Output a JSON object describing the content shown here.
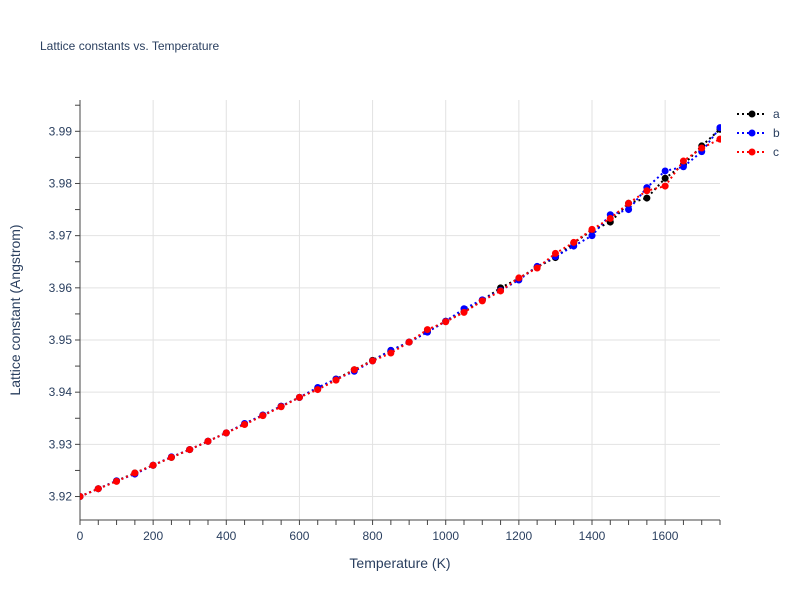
{
  "chart_data": {
    "type": "line",
    "title": "Lattice constants vs. Temperature",
    "xlabel": "Temperature (K)",
    "ylabel": "Lattice constant (Angstrom)",
    "xlim": [
      0,
      1750
    ],
    "ylim": [
      3.9155,
      3.996
    ],
    "x_ticks": [
      0,
      200,
      400,
      600,
      800,
      1000,
      1200,
      1400,
      1600
    ],
    "y_ticks": [
      3.92,
      3.93,
      3.94,
      3.95,
      3.96,
      3.97,
      3.98,
      3.99
    ],
    "grid": true,
    "legend_position": "top-right",
    "line_style": "dotted",
    "x": [
      0,
      50,
      100,
      150,
      200,
      250,
      300,
      350,
      400,
      450,
      500,
      550,
      600,
      650,
      700,
      750,
      800,
      850,
      900,
      950,
      1000,
      1050,
      1100,
      1150,
      1200,
      1250,
      1300,
      1350,
      1400,
      1450,
      1500,
      1550,
      1600,
      1650,
      1700,
      1750
    ],
    "series": [
      {
        "name": "a",
        "color": "#000000",
        "values": [
          3.92,
          3.9215,
          3.923,
          3.9245,
          3.926,
          3.9275,
          3.929,
          3.9306,
          3.9322,
          3.9339,
          3.9356,
          3.9373,
          3.939,
          3.9407,
          3.9425,
          3.9443,
          3.9461,
          3.948,
          3.9496,
          3.9516,
          3.9536,
          3.9554,
          3.9576,
          3.96,
          3.9618,
          3.964,
          3.9658,
          3.9686,
          3.971,
          3.9726,
          3.9762,
          3.9772,
          3.981,
          3.9836,
          3.9872,
          3.9904
        ]
      },
      {
        "name": "b",
        "color": "#0000ff",
        "values": [
          3.92,
          3.9215,
          3.923,
          3.9243,
          3.926,
          3.9276,
          3.929,
          3.9306,
          3.9322,
          3.934,
          3.9356,
          3.9373,
          3.939,
          3.9409,
          3.9425,
          3.944,
          3.946,
          3.948,
          3.9496,
          3.9515,
          3.9536,
          3.956,
          3.9577,
          3.9595,
          3.9615,
          3.9641,
          3.966,
          3.968,
          3.97,
          3.974,
          3.975,
          3.9792,
          3.9824,
          3.9832,
          3.9861,
          3.9907
        ]
      },
      {
        "name": "c",
        "color": "#ff0000",
        "values": [
          3.92,
          3.9215,
          3.9229,
          3.9245,
          3.926,
          3.9275,
          3.929,
          3.9306,
          3.9322,
          3.9338,
          3.9355,
          3.9372,
          3.939,
          3.9405,
          3.9423,
          3.9443,
          3.946,
          3.9475,
          3.9496,
          3.952,
          3.9535,
          3.9553,
          3.9575,
          3.9594,
          3.9619,
          3.9638,
          3.9666,
          3.9687,
          3.9712,
          3.9733,
          3.9762,
          3.9786,
          3.9795,
          3.9843,
          3.9868,
          3.9885
        ]
      }
    ]
  }
}
